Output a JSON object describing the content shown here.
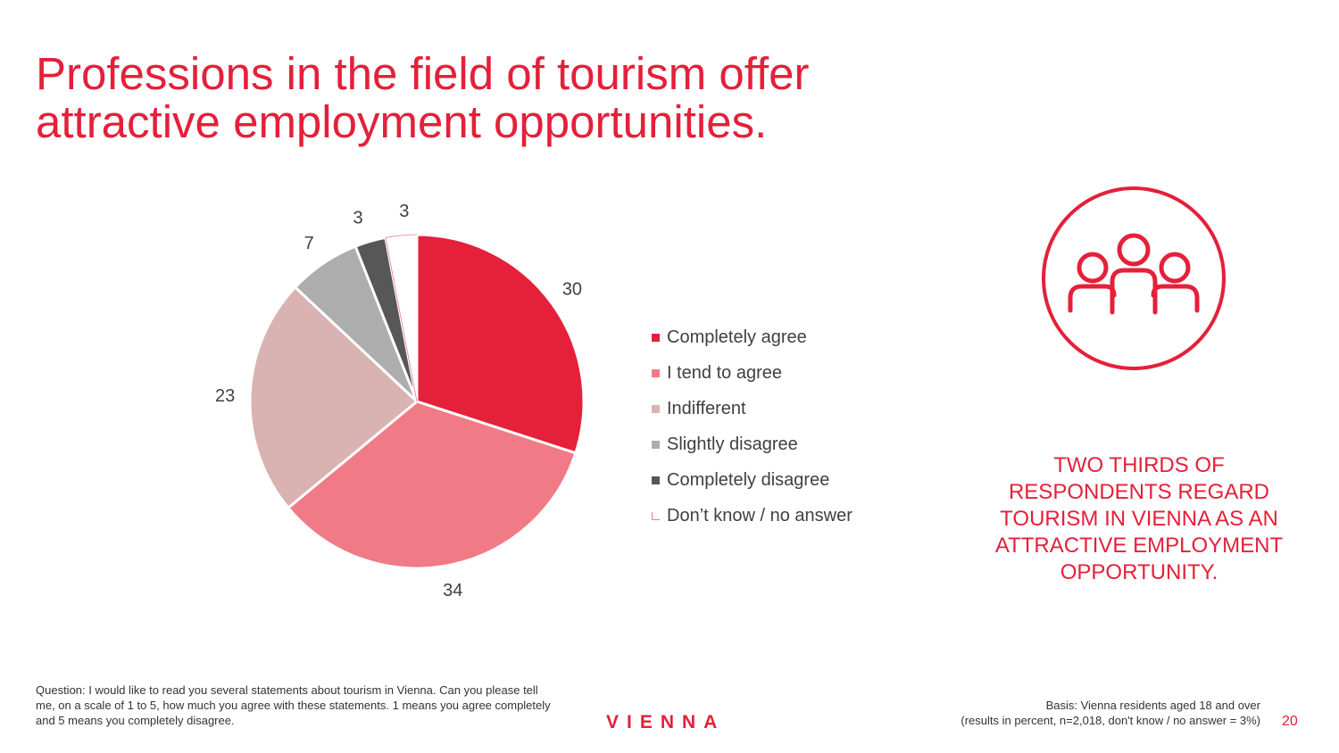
{
  "title": {
    "line1": "Professions in the field of tourism offer",
    "line2": "attractive employment opportunities."
  },
  "chart_data": {
    "type": "pie",
    "title": "",
    "unit": "percent",
    "categories": [
      "Completely agree",
      "I tend to agree",
      "Indifferent",
      "Slightly disagree",
      "Completely disagree",
      "Don’t know / no answer"
    ],
    "values": [
      30,
      34,
      23,
      7,
      3,
      3
    ],
    "data_labels": [
      "30",
      "34",
      "23",
      "7",
      "3",
      "3"
    ],
    "colors": [
      "#e4203a",
      "#f07b87",
      "#d9b2b2",
      "#adadad",
      "#575757",
      "#ffffff"
    ],
    "start": "12 o'clock, clockwise",
    "legend_position": "right"
  },
  "callout": {
    "icon": "people-group-icon",
    "text": "TWO THIRDS OF RESPONDENTS REGARD TOURISM IN VIENNA AS AN ATTRACTIVE EMPLOYMENT OPPORTUNITY."
  },
  "footer": {
    "question": "Question: I would like to read you several statements about tourism in Vienna. Can you please tell me, on a scale of 1 to 5, how much you agree with these statements. 1 means you agree completely and 5 means you completely disagree.",
    "logo": "VIENNA",
    "basis_line1": "Basis: Vienna residents aged 18 and over",
    "basis_line2": "(results in percent, n=2,018, don't know / no answer = 3%)",
    "page_number": "20"
  },
  "theme": {
    "accent": "#e4203a",
    "text": "#404040"
  }
}
